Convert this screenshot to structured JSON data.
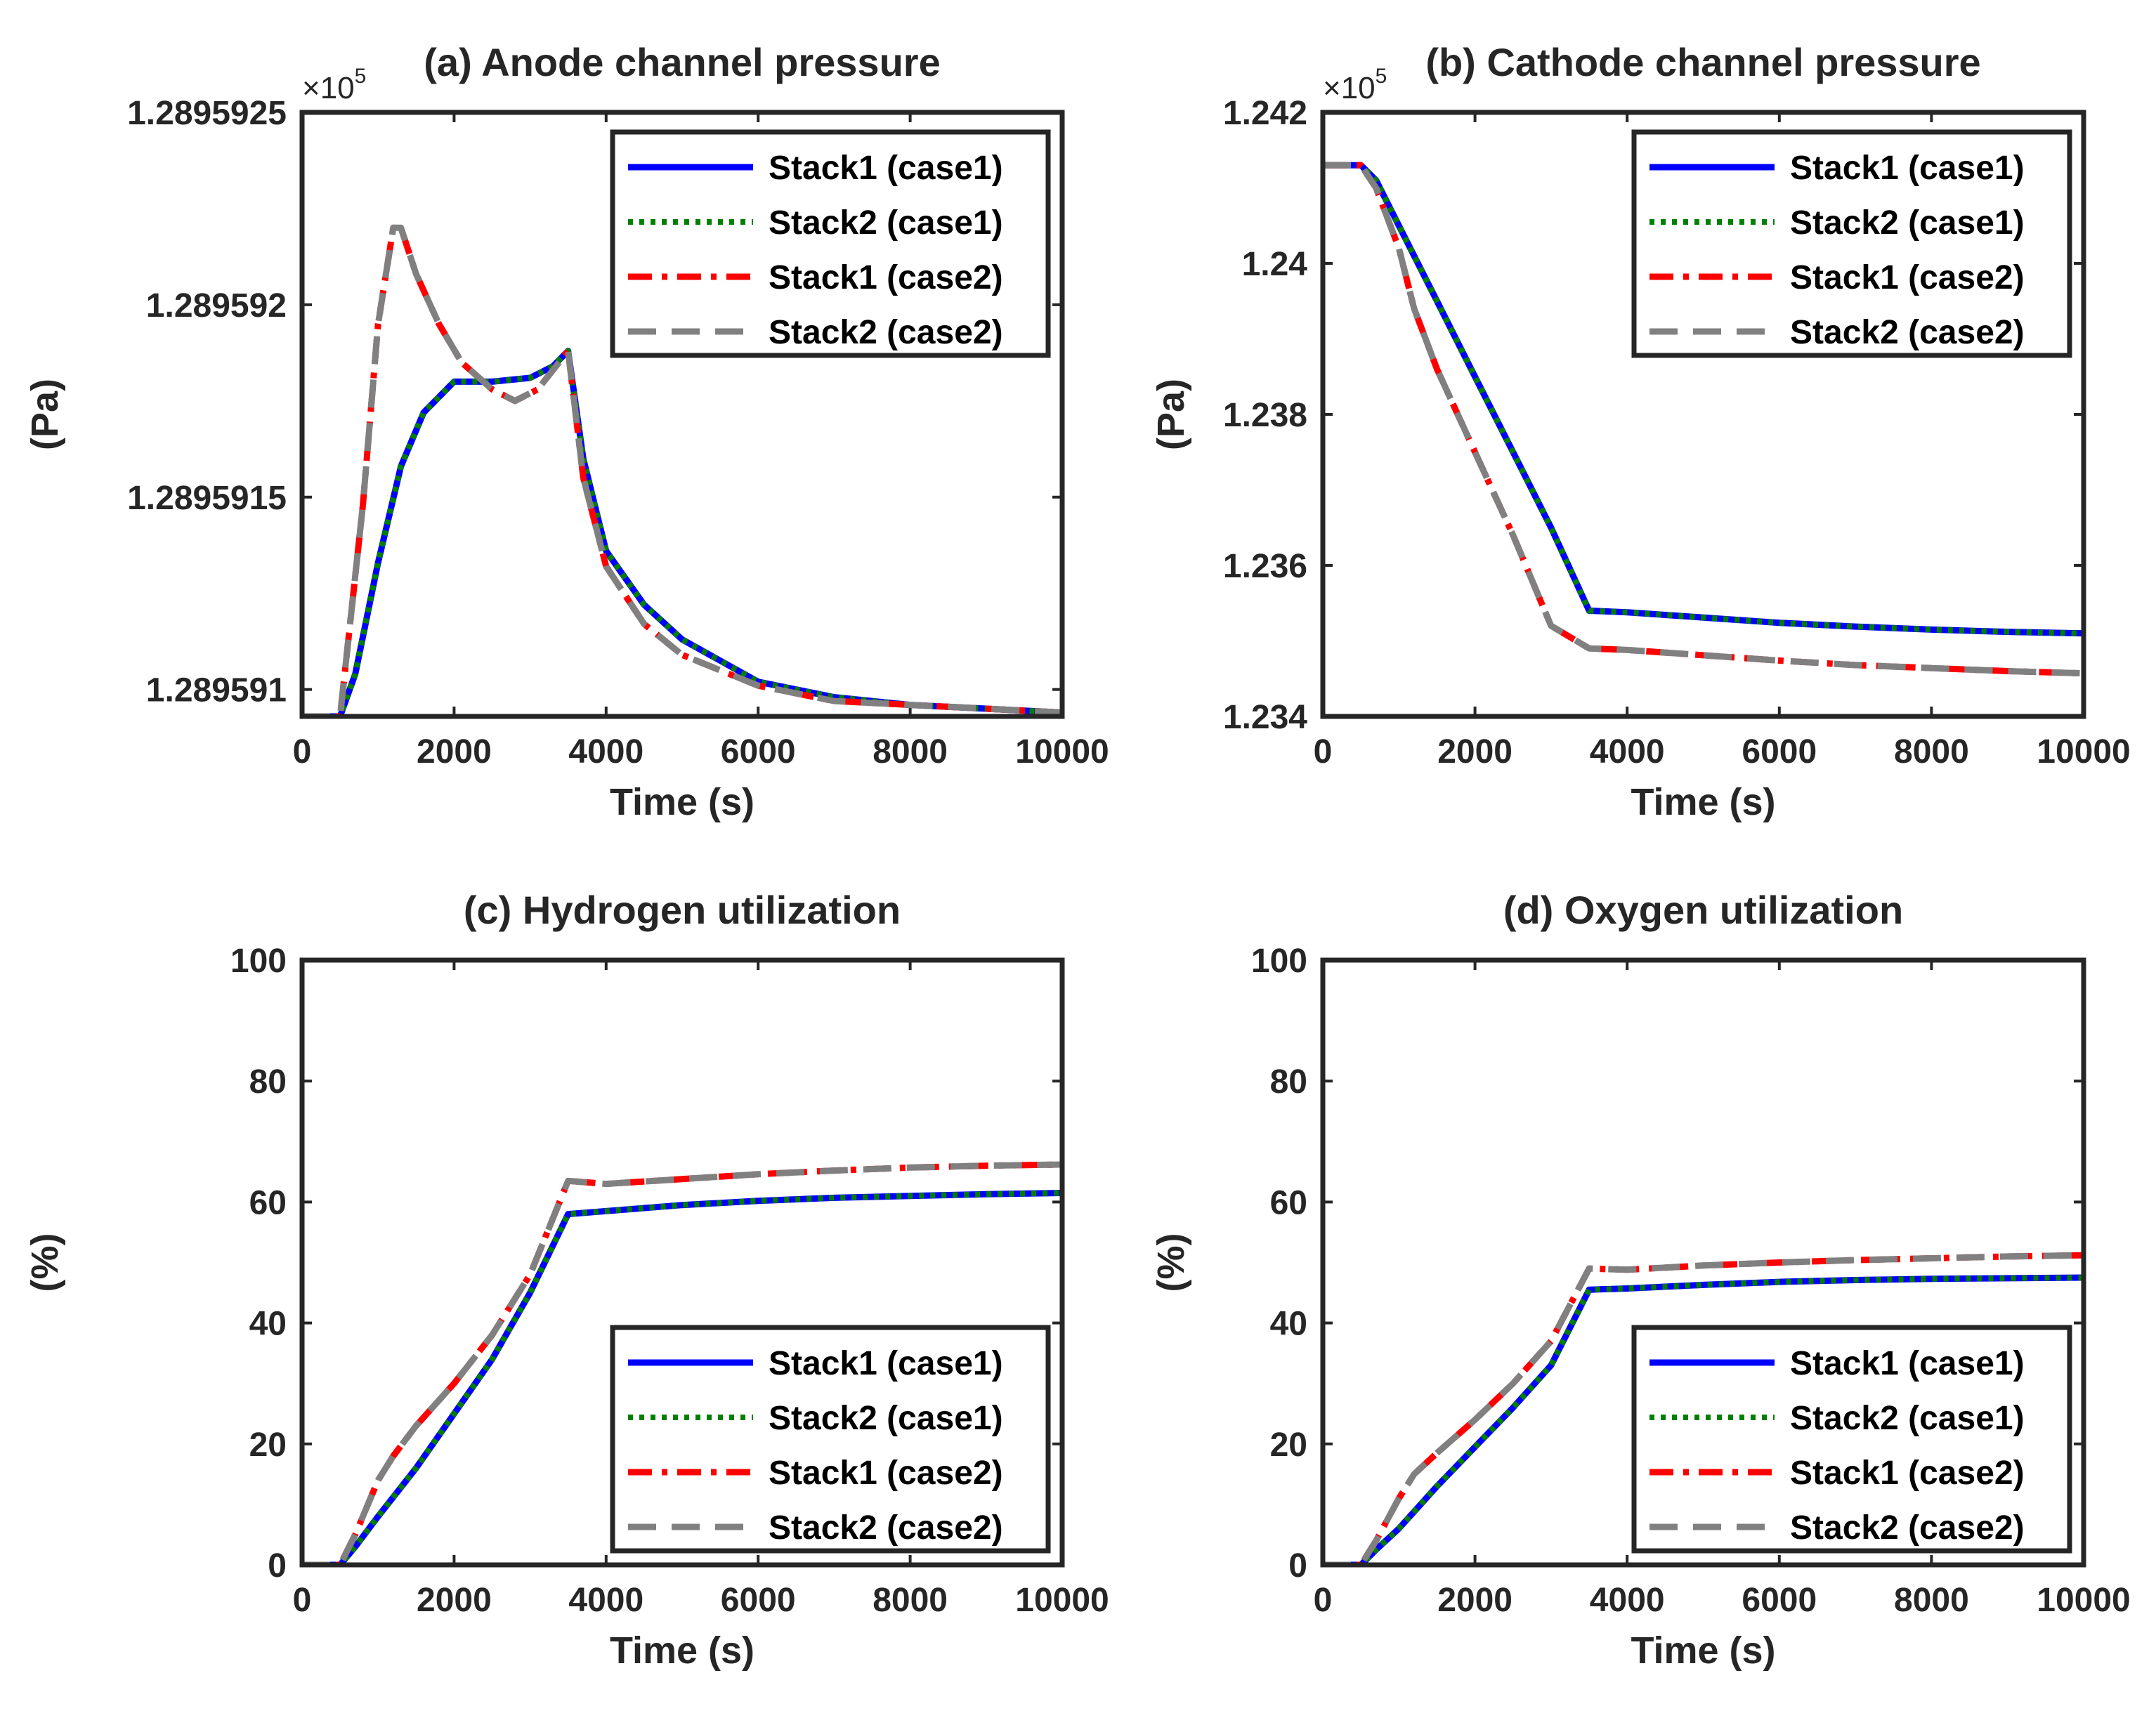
{
  "colors": {
    "stack1_case1": "#0000ff",
    "stack2_case1": "#008000",
    "stack1_case2": "#ff0000",
    "stack2_case2": "#808080",
    "axes": "#262626"
  },
  "chart_data": [
    {
      "id": "a",
      "type": "line",
      "title": "(a) Anode channel pressure",
      "xlabel": "Time (s)",
      "ylabel": "(Pa)",
      "multiplier": {
        "base": "×10",
        "exp": "5"
      },
      "xlim": [
        0,
        10000
      ],
      "ylim": [
        1.28959093,
        1.2895925
      ],
      "xticks": [
        0,
        2000,
        4000,
        6000,
        8000,
        10000
      ],
      "xtick_labels": [
        "0",
        "2000",
        "4000",
        "6000",
        "8000",
        "10000"
      ],
      "yticks": [
        1.289591,
        1.2895915,
        1.289592,
        1.2895925
      ],
      "ytick_labels": [
        "1.289591",
        "1.2895915",
        "1.289592",
        "1.2895925"
      ],
      "legend": {
        "position": "top-right",
        "entries": [
          "Stack1 (case1)",
          "Stack2 (case1)",
          "Stack1 (case2)",
          "Stack2 (case2)"
        ]
      },
      "series": [
        {
          "name": "Stack1 (case1)",
          "style": "solid",
          "color": "#0000ff",
          "x": [
            0,
            500,
            700,
            1000,
            1300,
            1600,
            2000,
            2500,
            3000,
            3300,
            3500,
            3700,
            4000,
            4500,
            5000,
            6000,
            7000,
            8000,
            9000,
            10000
          ],
          "y": [
            1.28959093,
            1.28959093,
            1.28959104,
            1.28959133,
            1.28959158,
            1.28959172,
            1.2895918,
            1.2895918,
            1.28959181,
            1.28959184,
            1.28959188,
            1.2895916,
            1.28959136,
            1.28959122,
            1.28959113,
            1.28959102,
            1.28959098,
            1.28959096,
            1.28959095,
            1.28959094
          ]
        },
        {
          "name": "Stack2 (case1)",
          "style": "dotted",
          "color": "#008000",
          "x": [
            0,
            500,
            700,
            1000,
            1300,
            1600,
            2000,
            2500,
            3000,
            3300,
            3500,
            3700,
            4000,
            4500,
            5000,
            6000,
            7000,
            8000,
            9000,
            10000
          ],
          "y": [
            1.28959093,
            1.28959093,
            1.28959104,
            1.28959133,
            1.28959158,
            1.28959172,
            1.2895918,
            1.2895918,
            1.28959181,
            1.28959184,
            1.28959188,
            1.2895916,
            1.28959136,
            1.28959122,
            1.28959113,
            1.28959102,
            1.28959098,
            1.28959096,
            1.28959095,
            1.28959094
          ]
        },
        {
          "name": "Stack1 (case2)",
          "style": "dashdot",
          "color": "#ff0000",
          "x": [
            0,
            500,
            800,
            1000,
            1200,
            1300,
            1500,
            1800,
            2100,
            2500,
            2800,
            3100,
            3500,
            3700,
            4000,
            4500,
            5000,
            6000,
            7000,
            8000,
            9000,
            10000
          ],
          "y": [
            1.28959093,
            1.28959093,
            1.28959148,
            1.28959195,
            1.2895922,
            1.2895922,
            1.28959208,
            1.28959195,
            1.28959185,
            1.28959178,
            1.28959175,
            1.28959178,
            1.28959188,
            1.28959155,
            1.28959132,
            1.28959117,
            1.28959109,
            1.28959101,
            1.28959097,
            1.28959096,
            1.28959095,
            1.28959094
          ]
        },
        {
          "name": "Stack2 (case2)",
          "style": "dashed",
          "color": "#808080",
          "x": [
            0,
            500,
            800,
            1000,
            1200,
            1300,
            1500,
            1800,
            2100,
            2500,
            2800,
            3100,
            3500,
            3700,
            4000,
            4500,
            5000,
            6000,
            7000,
            8000,
            9000,
            10000
          ],
          "y": [
            1.28959093,
            1.28959093,
            1.28959148,
            1.28959195,
            1.2895922,
            1.2895922,
            1.28959208,
            1.28959195,
            1.28959185,
            1.28959178,
            1.28959175,
            1.28959178,
            1.28959188,
            1.28959155,
            1.28959132,
            1.28959117,
            1.28959109,
            1.28959101,
            1.28959097,
            1.28959096,
            1.28959095,
            1.28959094
          ]
        }
      ]
    },
    {
      "id": "b",
      "type": "line",
      "title": "(b) Cathode channel pressure",
      "xlabel": "Time (s)",
      "ylabel": "(Pa)",
      "multiplier": {
        "base": "×10",
        "exp": "5"
      },
      "xlim": [
        0,
        10000
      ],
      "ylim": [
        1.234,
        1.242
      ],
      "xticks": [
        0,
        2000,
        4000,
        6000,
        8000,
        10000
      ],
      "xtick_labels": [
        "0",
        "2000",
        "4000",
        "6000",
        "8000",
        "10000"
      ],
      "yticks": [
        1.234,
        1.236,
        1.238,
        1.24,
        1.242
      ],
      "ytick_labels": [
        "1.234",
        "1.236",
        "1.238",
        "1.24",
        "1.242"
      ],
      "legend": {
        "position": "top-right",
        "entries": [
          "Stack1 (case1)",
          "Stack2 (case1)",
          "Stack1 (case2)",
          "Stack2 (case2)"
        ]
      },
      "series": [
        {
          "name": "Stack1 (case1)",
          "style": "solid",
          "color": "#0000ff",
          "x": [
            0,
            500,
            700,
            1000,
            1500,
            2000,
            2500,
            3000,
            3500,
            4000,
            5000,
            6000,
            7000,
            8000,
            9000,
            10000
          ],
          "y": [
            1.2413,
            1.2413,
            1.2411,
            1.2405,
            1.2395,
            1.2385,
            1.2375,
            1.2365,
            1.2354,
            1.23538,
            1.23531,
            1.23524,
            1.23519,
            1.23515,
            1.23512,
            1.2351
          ]
        },
        {
          "name": "Stack2 (case1)",
          "style": "dotted",
          "color": "#008000",
          "x": [
            0,
            500,
            700,
            1000,
            1500,
            2000,
            2500,
            3000,
            3500,
            4000,
            5000,
            6000,
            7000,
            8000,
            9000,
            10000
          ],
          "y": [
            1.2413,
            1.2413,
            1.2411,
            1.2405,
            1.2395,
            1.2385,
            1.2375,
            1.2365,
            1.2354,
            1.23538,
            1.23531,
            1.23524,
            1.23519,
            1.23515,
            1.23512,
            1.2351
          ]
        },
        {
          "name": "Stack1 (case2)",
          "style": "dashdot",
          "color": "#ff0000",
          "x": [
            0,
            500,
            700,
            1000,
            1200,
            1500,
            2000,
            2500,
            3000,
            3500,
            4000,
            5000,
            6000,
            7000,
            8000,
            9000,
            10000
          ],
          "y": [
            1.2413,
            1.2413,
            1.241,
            1.2402,
            1.2394,
            1.2386,
            1.2375,
            1.2364,
            1.2352,
            1.2349,
            1.23488,
            1.23481,
            1.23474,
            1.23468,
            1.23464,
            1.2346,
            1.23457
          ]
        },
        {
          "name": "Stack2 (case2)",
          "style": "dashed",
          "color": "#808080",
          "x": [
            0,
            500,
            700,
            1000,
            1200,
            1500,
            2000,
            2500,
            3000,
            3500,
            4000,
            5000,
            6000,
            7000,
            8000,
            9000,
            10000
          ],
          "y": [
            1.2413,
            1.2413,
            1.241,
            1.2402,
            1.2394,
            1.2386,
            1.2375,
            1.2364,
            1.2352,
            1.2349,
            1.23488,
            1.23481,
            1.23474,
            1.23468,
            1.23464,
            1.2346,
            1.23457
          ]
        }
      ]
    },
    {
      "id": "c",
      "type": "line",
      "title": "(c) Hydrogen utilization",
      "xlabel": "Time (s)",
      "ylabel": "(%)",
      "multiplier": null,
      "xlim": [
        0,
        10000
      ],
      "ylim": [
        0,
        100
      ],
      "xticks": [
        0,
        2000,
        4000,
        6000,
        8000,
        10000
      ],
      "xtick_labels": [
        "0",
        "2000",
        "4000",
        "6000",
        "8000",
        "10000"
      ],
      "yticks": [
        0,
        20,
        40,
        60,
        80,
        100
      ],
      "ytick_labels": [
        "0",
        "20",
        "40",
        "60",
        "80",
        "100"
      ],
      "legend": {
        "position": "bottom-right",
        "entries": [
          "Stack1 (case1)",
          "Stack2 (case1)",
          "Stack1 (case2)",
          "Stack2 (case2)"
        ]
      },
      "series": [
        {
          "name": "Stack1 (case1)",
          "style": "solid",
          "color": "#0000ff",
          "x": [
            0,
            500,
            700,
            1000,
            1500,
            2000,
            2500,
            3000,
            3500,
            4000,
            5000,
            6000,
            7000,
            8000,
            9000,
            10000
          ],
          "y": [
            0,
            0,
            3,
            8,
            16,
            25,
            34,
            45,
            58,
            58.5,
            59.5,
            60.2,
            60.7,
            61,
            61.3,
            61.5
          ]
        },
        {
          "name": "Stack2 (case1)",
          "style": "dotted",
          "color": "#008000",
          "x": [
            0,
            500,
            700,
            1000,
            1500,
            2000,
            2500,
            3000,
            3500,
            4000,
            5000,
            6000,
            7000,
            8000,
            9000,
            10000
          ],
          "y": [
            0,
            0,
            3,
            8,
            16,
            25,
            34,
            45,
            58,
            58.5,
            59.5,
            60.2,
            60.7,
            61,
            61.3,
            61.5
          ]
        },
        {
          "name": "Stack1 (case2)",
          "style": "dashdot",
          "color": "#ff0000",
          "x": [
            0,
            500,
            700,
            1000,
            1200,
            1500,
            2000,
            2500,
            3000,
            3500,
            4000,
            5000,
            6000,
            7000,
            8000,
            9000,
            10000
          ],
          "y": [
            0,
            0,
            5,
            14,
            18,
            23,
            30,
            38,
            48,
            63.5,
            63,
            63.8,
            64.6,
            65.2,
            65.7,
            66,
            66.2
          ]
        },
        {
          "name": "Stack2 (case2)",
          "style": "dashed",
          "color": "#808080",
          "x": [
            0,
            500,
            700,
            1000,
            1200,
            1500,
            2000,
            2500,
            3000,
            3500,
            4000,
            5000,
            6000,
            7000,
            8000,
            9000,
            10000
          ],
          "y": [
            0,
            0,
            5,
            14,
            18,
            23,
            30,
            38,
            48,
            63.5,
            63,
            63.8,
            64.6,
            65.2,
            65.7,
            66,
            66.2
          ]
        }
      ]
    },
    {
      "id": "d",
      "type": "line",
      "title": "(d) Oxygen utilization",
      "xlabel": "Time (s)",
      "ylabel": "(%)",
      "multiplier": null,
      "xlim": [
        0,
        10000
      ],
      "ylim": [
        0,
        100
      ],
      "xticks": [
        0,
        2000,
        4000,
        6000,
        8000,
        10000
      ],
      "xtick_labels": [
        "0",
        "2000",
        "4000",
        "6000",
        "8000",
        "10000"
      ],
      "yticks": [
        0,
        20,
        40,
        60,
        80,
        100
      ],
      "ytick_labels": [
        "0",
        "20",
        "40",
        "60",
        "80",
        "100"
      ],
      "legend": {
        "position": "bottom-right",
        "entries": [
          "Stack1 (case1)",
          "Stack2 (case1)",
          "Stack1 (case2)",
          "Stack2 (case2)"
        ]
      },
      "series": [
        {
          "name": "Stack1 (case1)",
          "style": "solid",
          "color": "#0000ff",
          "x": [
            0,
            500,
            700,
            1000,
            1500,
            2000,
            2500,
            3000,
            3500,
            4000,
            5000,
            6000,
            7000,
            8000,
            9000,
            10000
          ],
          "y": [
            0,
            0,
            2.5,
            6,
            13,
            19.5,
            26,
            33,
            45.5,
            45.7,
            46.3,
            46.8,
            47.1,
            47.3,
            47.4,
            47.5
          ]
        },
        {
          "name": "Stack2 (case1)",
          "style": "dotted",
          "color": "#008000",
          "x": [
            0,
            500,
            700,
            1000,
            1500,
            2000,
            2500,
            3000,
            3500,
            4000,
            5000,
            6000,
            7000,
            8000,
            9000,
            10000
          ],
          "y": [
            0,
            0,
            2.5,
            6,
            13,
            19.5,
            26,
            33,
            45.5,
            45.7,
            46.3,
            46.8,
            47.1,
            47.3,
            47.4,
            47.5
          ]
        },
        {
          "name": "Stack1 (case2)",
          "style": "dashdot",
          "color": "#ff0000",
          "x": [
            0,
            500,
            700,
            1000,
            1200,
            1500,
            2000,
            2500,
            3000,
            3500,
            4000,
            5000,
            6000,
            7000,
            8000,
            9000,
            10000
          ],
          "y": [
            0,
            0,
            4,
            11,
            15,
            18.5,
            24,
            30,
            37,
            49,
            48.8,
            49.5,
            50,
            50.4,
            50.7,
            51,
            51.2
          ]
        },
        {
          "name": "Stack2 (case2)",
          "style": "dashed",
          "color": "#808080",
          "x": [
            0,
            500,
            700,
            1000,
            1200,
            1500,
            2000,
            2500,
            3000,
            3500,
            4000,
            5000,
            6000,
            7000,
            8000,
            9000,
            10000
          ],
          "y": [
            0,
            0,
            4,
            11,
            15,
            18.5,
            24,
            30,
            37,
            49,
            48.8,
            49.5,
            50,
            50.4,
            50.7,
            51,
            51.2
          ]
        }
      ]
    }
  ]
}
